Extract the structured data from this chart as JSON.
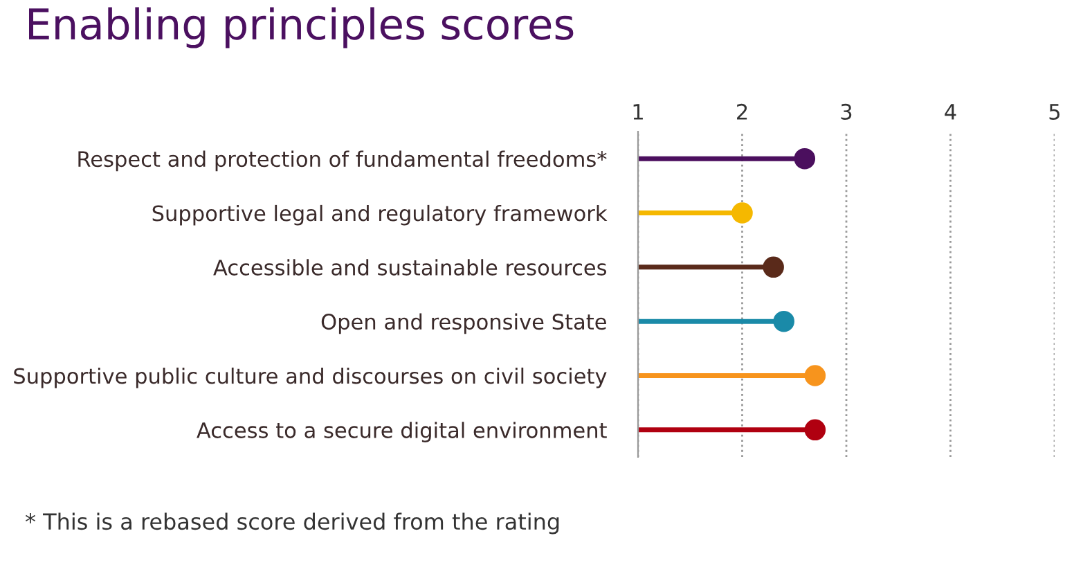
{
  "chart_data": {
    "type": "lollipop",
    "orientation": "horizontal",
    "title": "Enabling principles scores",
    "categories": [
      "Respect and protection of fundamental freedoms*",
      "Supportive legal and regulatory framework",
      "Accessible and sustainable resources",
      "Open and responsive State",
      "Supportive public culture and discourses on civil society",
      "Access to a secure digital environment"
    ],
    "values": [
      2.6,
      2.0,
      2.3,
      2.4,
      2.7,
      2.7
    ],
    "colors": [
      "#4b0f5e",
      "#f5b800",
      "#5a2a1a",
      "#1a8aa8",
      "#f7941d",
      "#b00010"
    ],
    "xlim": [
      1,
      5
    ],
    "xticks": [
      1,
      2,
      3,
      4,
      5
    ],
    "grid": "x",
    "marker": "circle",
    "annotations": [
      "* This is a rebased score derived from the rating"
    ]
  }
}
